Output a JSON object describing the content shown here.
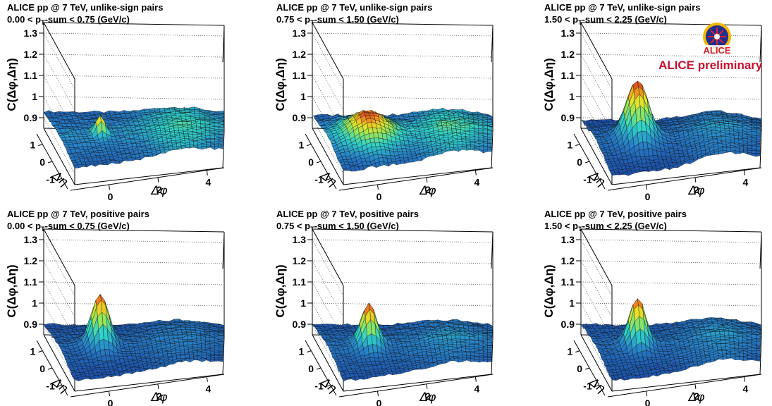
{
  "logo": {
    "text": "ALICE",
    "caption": "ALICE preliminary",
    "icon": "alice-logo-icon"
  },
  "colors": {
    "low": "#1a3f9c",
    "mid": "#2fd2c8",
    "midhigh": "#e9e228",
    "high": "#c0121b",
    "caption": "#c8102e"
  },
  "chart_data": [
    {
      "type": "surface",
      "title": "ALICE pp @ 7 TeV, unlike-sign pairs",
      "subtitle_pre": "0.00 < p",
      "subtitle_sub": "T",
      "subtitle_post": "-sum < 0.75 (GeV/c)",
      "xlabel": "Δφ",
      "ylabel": "Δη",
      "zlabel": "C(Δφ,Δη)",
      "xticks": [
        0,
        2,
        4
      ],
      "yticks": [
        1,
        0,
        -1
      ],
      "zticks": [
        0.9,
        1,
        1.1,
        1.2,
        1.3
      ],
      "xlim": [
        -1.57,
        4.71
      ],
      "ylim": [
        -1.6,
        1.6
      ],
      "zlim": [
        0.85,
        1.35
      ],
      "surface": {
        "base": 0.95,
        "away_side": 0.03,
        "eta_falloff": 0.02,
        "peak_height": 0.09,
        "peak_width": 0.18
      }
    },
    {
      "type": "surface",
      "title": "ALICE pp @ 7 TeV, unlike-sign pairs",
      "subtitle_pre": "0.75 < p",
      "subtitle_sub": "T",
      "subtitle_post": "-sum < 1.50 (GeV/c)",
      "xlabel": "Δφ",
      "ylabel": "Δη",
      "zlabel": "C(Δφ,Δη)",
      "xticks": [
        0,
        2,
        4
      ],
      "yticks": [
        1,
        0,
        -1
      ],
      "zticks": [
        0.9,
        1,
        1.1,
        1.2,
        1.3
      ],
      "xlim": [
        -1.57,
        4.71
      ],
      "ylim": [
        -1.6,
        1.6
      ],
      "zlim": [
        0.85,
        1.35
      ],
      "surface": {
        "base": 0.94,
        "away_side": 0.04,
        "eta_falloff": 0.03,
        "peak_height": 0.11,
        "peak_width": 0.7
      }
    },
    {
      "type": "surface",
      "title": "ALICE pp @ 7 TeV, unlike-sign pairs",
      "subtitle_pre": "1.50 < p",
      "subtitle_sub": "T",
      "subtitle_post": "-sum < 2.25 (GeV/c)",
      "xlabel": "Δφ",
      "ylabel": "Δη",
      "zlabel": "C(Δφ,Δη)",
      "xticks": [
        0,
        2,
        4
      ],
      "yticks": [
        1,
        0,
        -1
      ],
      "zticks": [
        0.9,
        1,
        1.1,
        1.2,
        1.3
      ],
      "xlim": [
        -1.57,
        4.71
      ],
      "ylim": [
        -1.6,
        1.6
      ],
      "zlim": [
        0.85,
        1.35
      ],
      "surface": {
        "base": 0.93,
        "away_side": 0.05,
        "eta_falloff": 0.04,
        "peak_height": 0.27,
        "peak_width": 0.42
      }
    },
    {
      "type": "surface",
      "title": "ALICE pp @ 7 TeV, positive pairs",
      "subtitle_pre": "0.00 < p",
      "subtitle_sub": "T",
      "subtitle_post": "-sum < 0.75 (GeV/c)",
      "xlabel": "Δφ",
      "ylabel": "Δη",
      "zlabel": "C(Δφ,Δη)",
      "xticks": [
        0,
        2,
        4
      ],
      "yticks": [
        1,
        0,
        -1
      ],
      "zticks": [
        0.9,
        1,
        1.1,
        1.2,
        1.3
      ],
      "xlim": [
        -1.57,
        4.71
      ],
      "ylim": [
        -1.6,
        1.6
      ],
      "zlim": [
        0.85,
        1.35
      ],
      "surface": {
        "base": 0.93,
        "away_side": 0.03,
        "eta_falloff": 0.03,
        "peak_height": 0.24,
        "peak_width": 0.32
      }
    },
    {
      "type": "surface",
      "title": "ALICE pp @ 7 TeV, positive pairs",
      "subtitle_pre": "0.75 < p",
      "subtitle_sub": "T",
      "subtitle_post": "-sum < 1.50 (GeV/c)",
      "xlabel": "Δφ",
      "ylabel": "Δη",
      "zlabel": "C(Δφ,Δη)",
      "xticks": [
        0,
        2,
        4
      ],
      "yticks": [
        1,
        0,
        -1
      ],
      "zticks": [
        0.9,
        1,
        1.1,
        1.2,
        1.3
      ],
      "xlim": [
        -1.57,
        4.71
      ],
      "ylim": [
        -1.6,
        1.6
      ],
      "zlim": [
        0.85,
        1.35
      ],
      "surface": {
        "base": 0.93,
        "away_side": 0.03,
        "eta_falloff": 0.03,
        "peak_height": 0.19,
        "peak_width": 0.3
      }
    },
    {
      "type": "surface",
      "title": "ALICE pp @ 7 TeV, positive pairs",
      "subtitle_pre": "1.50 < p",
      "subtitle_sub": "T",
      "subtitle_post": "-sum < 2.25 (GeV/c)",
      "xlabel": "Δφ",
      "ylabel": "Δη",
      "zlabel": "C(Δφ,Δη)",
      "xticks": [
        0,
        2,
        4
      ],
      "yticks": [
        1,
        0,
        -1
      ],
      "zticks": [
        0.9,
        1,
        1.1,
        1.2,
        1.3
      ],
      "xlim": [
        -1.57,
        4.71
      ],
      "ylim": [
        -1.6,
        1.6
      ],
      "zlim": [
        0.85,
        1.35
      ],
      "surface": {
        "base": 0.93,
        "away_side": 0.04,
        "eta_falloff": 0.03,
        "peak_height": 0.22,
        "peak_width": 0.3
      }
    }
  ]
}
